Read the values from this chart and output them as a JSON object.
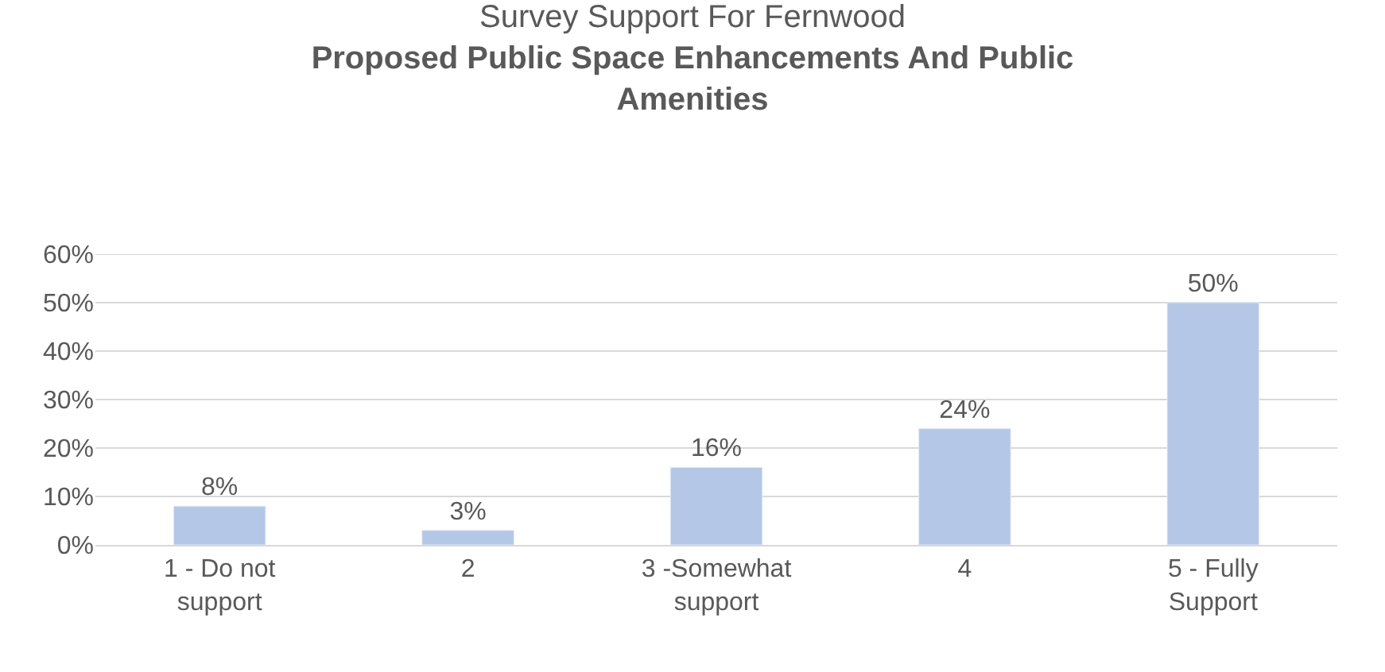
{
  "chart_data": {
    "type": "bar",
    "title": "Survey Support For Fernwood",
    "subtitle": "Proposed Public Space Enhancements And Public Amenities",
    "categories": [
      "1 - Do not support",
      "2",
      "3 -Somewhat support",
      "4",
      "5 - Fully Support"
    ],
    "values": [
      8,
      3,
      16,
      24,
      50
    ],
    "color": "#b4c7e7",
    "value_labels": [
      "8%",
      "3%",
      "16%",
      "24%",
      "50%"
    ],
    "ylim": [
      0,
      60
    ],
    "yticks": [
      {
        "value": 0,
        "label": "0%"
      },
      {
        "value": 10,
        "label": "10%"
      },
      {
        "value": 20,
        "label": "20%"
      },
      {
        "value": 30,
        "label": "30%"
      },
      {
        "value": 40,
        "label": "40%"
      },
      {
        "value": 50,
        "label": "50%"
      },
      {
        "value": 60,
        "label": "60%"
      }
    ],
    "grid": "y"
  }
}
